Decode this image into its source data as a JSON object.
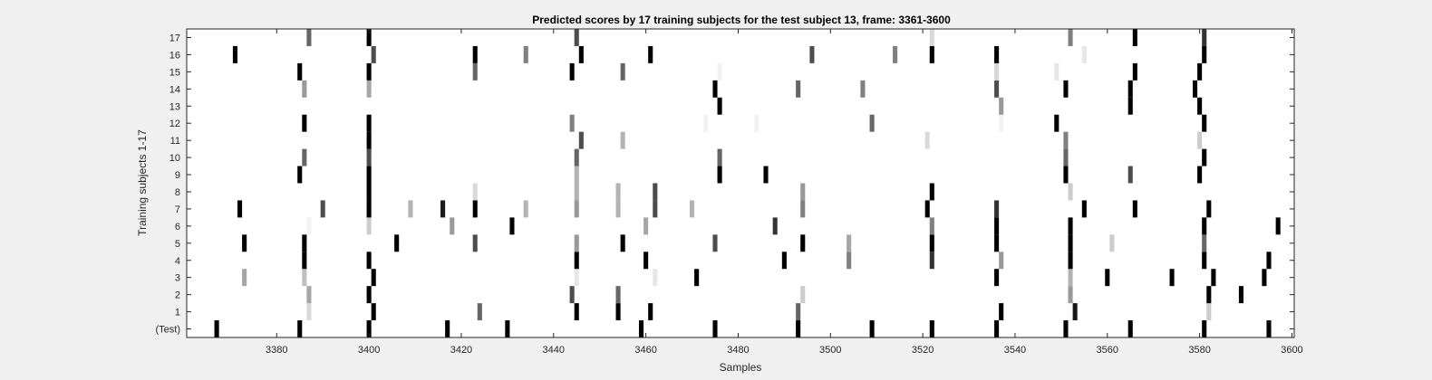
{
  "chart_data": {
    "type": "heatmap",
    "title": "Predicted scores by 17 training subjects for the test subject 13, frame: 3361-3600",
    "xlabel": "Samples",
    "ylabel": "Training subjects 1-17",
    "xlim": [
      3361,
      3600
    ],
    "x_ticks": [
      3380,
      3400,
      3420,
      3440,
      3460,
      3480,
      3500,
      3520,
      3540,
      3560,
      3580,
      3600
    ],
    "row_labels": [
      "(Test)",
      "1",
      "2",
      "3",
      "4",
      "5",
      "6",
      "7",
      "8",
      "9",
      "10",
      "11",
      "12",
      "13",
      "14",
      "15",
      "16",
      "17"
    ],
    "colormap": "gray-inverted",
    "value_range": [
      0,
      1
    ],
    "cell_width_samples": 1,
    "rows": [
      {
        "label": "(Test)",
        "cells": [
          [
            3367,
            1
          ],
          [
            3385,
            1
          ],
          [
            3400,
            1
          ],
          [
            3417,
            1
          ],
          [
            3430,
            1
          ],
          [
            3459,
            1
          ],
          [
            3475,
            1
          ],
          [
            3493,
            1
          ],
          [
            3509,
            1
          ],
          [
            3522,
            1
          ],
          [
            3536,
            1
          ],
          [
            3551,
            1
          ],
          [
            3565,
            1
          ],
          [
            3581,
            1
          ],
          [
            3595,
            1
          ]
        ]
      },
      {
        "label": "1",
        "cells": [
          [
            3387,
            0.15
          ],
          [
            3401,
            1
          ],
          [
            3424,
            0.6
          ],
          [
            3445,
            1
          ],
          [
            3454,
            1
          ],
          [
            3461,
            1
          ],
          [
            3493,
            0.6
          ],
          [
            3537,
            1
          ],
          [
            3553,
            0.9
          ],
          [
            3582,
            0.2
          ]
        ]
      },
      {
        "label": "2",
        "cells": [
          [
            3387,
            0.35
          ],
          [
            3400,
            1
          ],
          [
            3444,
            0.7
          ],
          [
            3454,
            0.6
          ],
          [
            3494,
            0.2
          ],
          [
            3552,
            0.4
          ],
          [
            3582,
            1
          ],
          [
            3589,
            1
          ]
        ]
      },
      {
        "label": "3",
        "cells": [
          [
            3373,
            0.35
          ],
          [
            3386,
            0.25
          ],
          [
            3401,
            1
          ],
          [
            3445,
            0.1
          ],
          [
            3462,
            0.1
          ],
          [
            3471,
            1
          ],
          [
            3536,
            1
          ],
          [
            3552,
            0.3
          ],
          [
            3560,
            1
          ],
          [
            3574,
            1
          ],
          [
            3583,
            1
          ],
          [
            3594,
            1
          ]
        ]
      },
      {
        "label": "4",
        "cells": [
          [
            3386,
            1
          ],
          [
            3400,
            1
          ],
          [
            3445,
            1
          ],
          [
            3460,
            1
          ],
          [
            3490,
            1
          ],
          [
            3504,
            0.5
          ],
          [
            3522,
            0.8
          ],
          [
            3537,
            0.4
          ],
          [
            3552,
            1
          ],
          [
            3581,
            1
          ],
          [
            3595,
            1
          ]
        ]
      },
      {
        "label": "5",
        "cells": [
          [
            3373,
            1
          ],
          [
            3386,
            1
          ],
          [
            3406,
            1
          ],
          [
            3423,
            0.7
          ],
          [
            3445,
            0.4
          ],
          [
            3455,
            1
          ],
          [
            3475,
            0.7
          ],
          [
            3494,
            1
          ],
          [
            3504,
            0.35
          ],
          [
            3522,
            1
          ],
          [
            3536,
            1
          ],
          [
            3552,
            1
          ],
          [
            3561,
            0.2
          ],
          [
            3581,
            0.6
          ]
        ]
      },
      {
        "label": "6",
        "cells": [
          [
            3387,
            0.05
          ],
          [
            3400,
            0.2
          ],
          [
            3418,
            0.4
          ],
          [
            3431,
            1
          ],
          [
            3460,
            0.35
          ],
          [
            3488,
            0.8
          ],
          [
            3522,
            0.5
          ],
          [
            3536,
            1
          ],
          [
            3552,
            1
          ],
          [
            3581,
            1
          ],
          [
            3597,
            1
          ]
        ]
      },
      {
        "label": "7",
        "cells": [
          [
            3372,
            1
          ],
          [
            3390,
            0.7
          ],
          [
            3400,
            1
          ],
          [
            3409,
            0.3
          ],
          [
            3416,
            0.9
          ],
          [
            3423,
            1
          ],
          [
            3434,
            0.3
          ],
          [
            3445,
            0.4
          ],
          [
            3454,
            0.3
          ],
          [
            3462,
            0.7
          ],
          [
            3470,
            0.3
          ],
          [
            3494,
            0.5
          ],
          [
            3521,
            1
          ],
          [
            3536,
            0.8
          ],
          [
            3555,
            1
          ],
          [
            3566,
            1
          ],
          [
            3582,
            1
          ]
        ]
      },
      {
        "label": "8",
        "cells": [
          [
            3400,
            1
          ],
          [
            3423,
            0.15
          ],
          [
            3445,
            0.3
          ],
          [
            3454,
            0.3
          ],
          [
            3462,
            0.7
          ],
          [
            3494,
            0.4
          ],
          [
            3522,
            1
          ],
          [
            3552,
            0.2
          ]
        ]
      },
      {
        "label": "9",
        "cells": [
          [
            3385,
            1
          ],
          [
            3400,
            1
          ],
          [
            3445,
            0.3
          ],
          [
            3476,
            1
          ],
          [
            3486,
            1
          ],
          [
            3551,
            1
          ],
          [
            3565,
            0.7
          ],
          [
            3580,
            1
          ]
        ]
      },
      {
        "label": "10",
        "cells": [
          [
            3386,
            0.6
          ],
          [
            3400,
            0.7
          ],
          [
            3445,
            0.6
          ],
          [
            3476,
            0.6
          ],
          [
            3551,
            0.6
          ],
          [
            3581,
            1
          ]
        ]
      },
      {
        "label": "11",
        "cells": [
          [
            3400,
            1
          ],
          [
            3446,
            0.7
          ],
          [
            3455,
            0.3
          ],
          [
            3521,
            0.15
          ],
          [
            3551,
            0.5
          ],
          [
            3580,
            0.2
          ]
        ]
      },
      {
        "label": "12",
        "cells": [
          [
            3386,
            1
          ],
          [
            3400,
            1
          ],
          [
            3444,
            0.5
          ],
          [
            3473,
            0.05
          ],
          [
            3484,
            0.05
          ],
          [
            3509,
            0.6
          ],
          [
            3537,
            0.05
          ],
          [
            3549,
            1
          ],
          [
            3581,
            1
          ]
        ]
      },
      {
        "label": "13",
        "cells": [
          [
            3476,
            1
          ],
          [
            3537,
            0.4
          ],
          [
            3565,
            1
          ],
          [
            3580,
            1
          ]
        ]
      },
      {
        "label": "14",
        "cells": [
          [
            3386,
            0.4
          ],
          [
            3400,
            0.35
          ],
          [
            3475,
            1
          ],
          [
            3493,
            0.6
          ],
          [
            3507,
            0.5
          ],
          [
            3536,
            0.7
          ],
          [
            3551,
            1
          ],
          [
            3565,
            1
          ],
          [
            3579,
            1
          ]
        ]
      },
      {
        "label": "15",
        "cells": [
          [
            3385,
            1
          ],
          [
            3400,
            1
          ],
          [
            3423,
            0.6
          ],
          [
            3444,
            1
          ],
          [
            3455,
            0.6
          ],
          [
            3476,
            0.05
          ],
          [
            3536,
            0.15
          ],
          [
            3549,
            0.1
          ],
          [
            3566,
            1
          ],
          [
            3580,
            1
          ]
        ]
      },
      {
        "label": "16",
        "cells": [
          [
            3371,
            1
          ],
          [
            3401,
            0.7
          ],
          [
            3423,
            1
          ],
          [
            3434,
            0.5
          ],
          [
            3446,
            1
          ],
          [
            3461,
            1
          ],
          [
            3496,
            0.7
          ],
          [
            3514,
            0.5
          ],
          [
            3522,
            1
          ],
          [
            3536,
            1
          ],
          [
            3555,
            0.1
          ],
          [
            3581,
            1
          ]
        ]
      },
      {
        "label": "17",
        "cells": [
          [
            3387,
            0.6
          ],
          [
            3400,
            1
          ],
          [
            3445,
            0.7
          ],
          [
            3522,
            0.15
          ],
          [
            3552,
            0.5
          ],
          [
            3566,
            1
          ],
          [
            3581,
            0.8
          ]
        ]
      }
    ]
  }
}
